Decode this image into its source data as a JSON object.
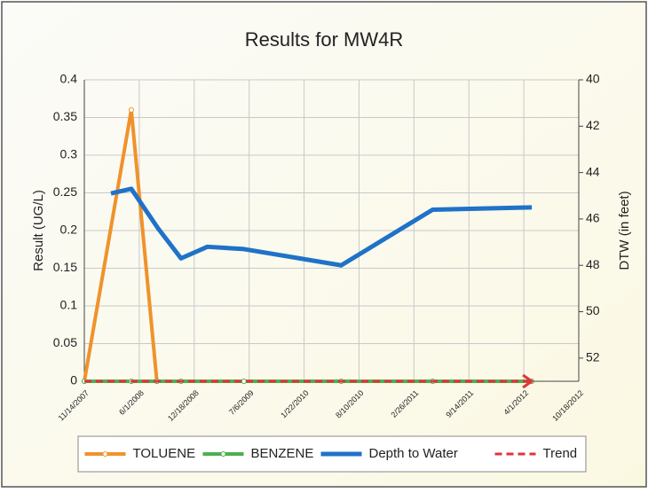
{
  "chart_data": {
    "type": "line",
    "title": "Results for MW4R",
    "y_label": "Result (UG/L)",
    "y2_label": "DTW (in feet)",
    "xlim": [
      "2007-11-14",
      "2012-10-18"
    ],
    "xticks": [
      {
        "value": "2007-11-14",
        "label": "11/14/2007"
      },
      {
        "value": "2008-06-01",
        "label": "6/1/2008"
      },
      {
        "value": "2008-12-18",
        "label": "12/18/2008"
      },
      {
        "value": "2009-07-06",
        "label": "7/6/2009"
      },
      {
        "value": "2010-01-22",
        "label": "1/22/2010"
      },
      {
        "value": "2010-08-10",
        "label": "8/10/2010"
      },
      {
        "value": "2011-02-26",
        "label": "2/26/2011"
      },
      {
        "value": "2011-09-14",
        "label": "9/14/2011"
      },
      {
        "value": "2012-04-01",
        "label": "4/1/2012"
      },
      {
        "value": "2012-10-18",
        "label": "10/18/2012"
      }
    ],
    "ylim": [
      0,
      0.4
    ],
    "yticks": [
      0,
      0.05,
      0.1,
      0.15,
      0.2,
      0.25,
      0.3,
      0.35,
      0.4
    ],
    "y2lim": [
      53,
      40
    ],
    "y2ticks": [
      40,
      42,
      44,
      46,
      48,
      50,
      52
    ],
    "grid": true,
    "legend": "bottom",
    "series": [
      {
        "name": "TOLUENE",
        "color": "#f0922b",
        "width": 4,
        "markers": true,
        "x": [
          "2007-11-14",
          "2008-05-03",
          "2008-08-04"
        ],
        "values": [
          0,
          0.36,
          0
        ]
      },
      {
        "name": "BENZENE",
        "color": "#4caf50",
        "width": 4,
        "markers": true,
        "x": [
          "2007-11-14",
          "2008-05-03",
          "2008-08-04",
          "2008-10-31",
          "2009-06-17",
          "2010-06-06",
          "2011-05-05",
          "2012-04-30"
        ],
        "values": [
          0,
          0,
          0,
          0,
          0,
          0,
          0,
          0
        ]
      },
      {
        "name": "Depth to Water",
        "color": "#1f72c8",
        "width": 5,
        "axis": "y2",
        "x": [
          "2008-02-19",
          "2008-05-03",
          "2008-08-08",
          "2008-10-31",
          "2009-02-04",
          "2009-06-17",
          "2010-06-06",
          "2011-05-05",
          "2012-04-30"
        ],
        "values": [
          44.9,
          44.7,
          46.4,
          47.7,
          47.2,
          47.3,
          48.0,
          45.6,
          45.5
        ]
      },
      {
        "name": "Trend",
        "color": "#e0333a",
        "width": 3,
        "dash": true,
        "arrow": true,
        "x": [
          "2007-11-14",
          "2012-04-30"
        ],
        "values": [
          0,
          0
        ]
      }
    ]
  }
}
